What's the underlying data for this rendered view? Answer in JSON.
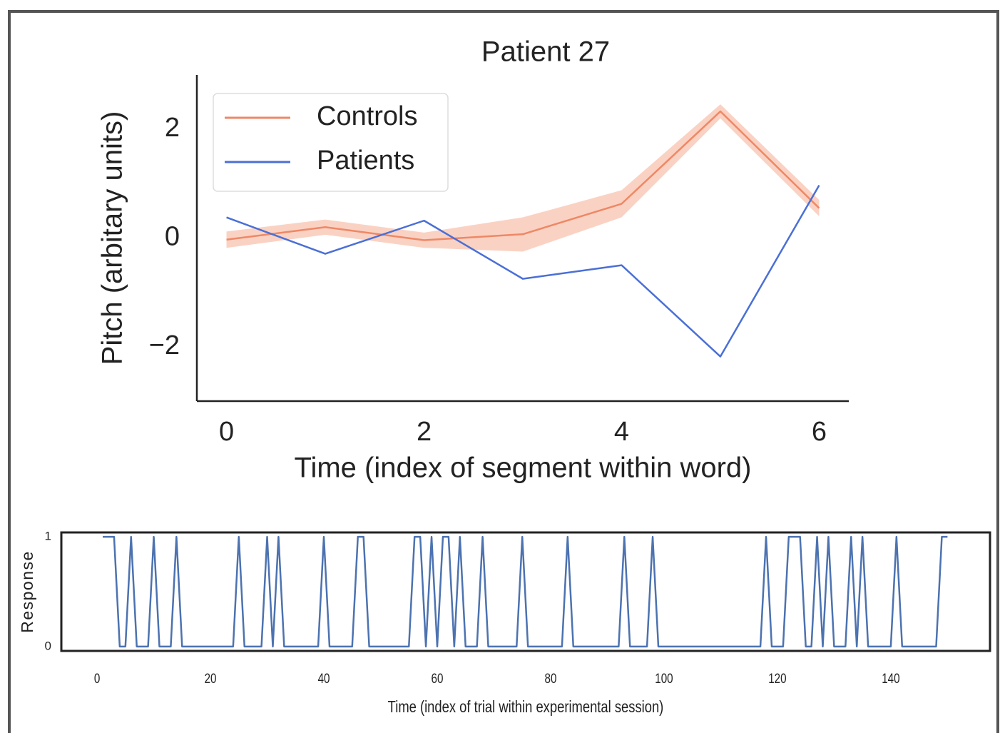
{
  "chart_data": [
    {
      "type": "line",
      "title": "Patient 27",
      "x_label": "Time (index of segment within word)",
      "y_label": "Pitch (arbitary units)",
      "x": [
        0,
        1,
        2,
        3,
        4,
        5,
        6
      ],
      "series": [
        {
          "name": "Controls",
          "color": "#ee8866",
          "values": [
            -0.03,
            0.2,
            -0.04,
            0.07,
            0.63,
            2.33,
            0.55
          ],
          "ci_lower": [
            -0.18,
            0.06,
            -0.18,
            -0.25,
            0.38,
            2.2,
            0.4
          ],
          "ci_upper": [
            0.12,
            0.34,
            0.1,
            0.38,
            0.88,
            2.46,
            0.7
          ],
          "ci_color": "#f9c7b4"
        },
        {
          "name": "Patients",
          "color": "#4a6fd6",
          "values": [
            0.38,
            -0.29,
            0.32,
            -0.75,
            -0.5,
            -2.18,
            0.97
          ]
        }
      ],
      "xlim": [
        -0.3,
        6.3
      ],
      "xticks": [
        0,
        2,
        4,
        6
      ],
      "ylim": [
        -3.0,
        3.0
      ],
      "yticks": [
        {
          "value": -2,
          "label": "−2"
        },
        0,
        2
      ],
      "legend": "upper left",
      "frame": "left-bottom"
    },
    {
      "type": "line",
      "x_label": "Time (index of trial within experimental session)",
      "y_label": "Response",
      "x": [
        1,
        2,
        3,
        4,
        5,
        6,
        7,
        8,
        9,
        10,
        11,
        12,
        13,
        14,
        15,
        16,
        17,
        18,
        19,
        20,
        21,
        22,
        23,
        24,
        25,
        26,
        27,
        28,
        29,
        30,
        31,
        32,
        33,
        34,
        35,
        36,
        37,
        38,
        39,
        40,
        41,
        42,
        43,
        44,
        45,
        46,
        47,
        48,
        49,
        50,
        51,
        52,
        53,
        54,
        55,
        56,
        57,
        58,
        59,
        60,
        61,
        62,
        63,
        64,
        65,
        66,
        67,
        68,
        69,
        70,
        71,
        72,
        73,
        74,
        75,
        76,
        77,
        78,
        79,
        80,
        81,
        82,
        83,
        84,
        85,
        86,
        87,
        88,
        89,
        90,
        91,
        92,
        93,
        94,
        95,
        96,
        97,
        98,
        99,
        100,
        101,
        102,
        103,
        104,
        105,
        106,
        107,
        108,
        109,
        110,
        111,
        112,
        113,
        114,
        115,
        116,
        117,
        118,
        119,
        120,
        121,
        122,
        123,
        124,
        125,
        126,
        127,
        128,
        129,
        130,
        131,
        132,
        133,
        134,
        135,
        136,
        137,
        138,
        139,
        140,
        141,
        142,
        143,
        144,
        145,
        146,
        147,
        148,
        149,
        150
      ],
      "series": [
        {
          "color": "#4c72b0",
          "values": [
            1,
            1,
            1,
            0,
            0,
            1,
            0,
            0,
            0,
            1,
            0,
            0,
            0,
            1,
            0,
            0,
            0,
            0,
            0,
            0,
            0,
            0,
            0,
            0,
            1,
            0,
            0,
            0,
            0,
            1,
            0,
            1,
            0,
            0,
            0,
            0,
            0,
            0,
            0,
            1,
            0,
            0,
            0,
            0,
            0,
            1,
            1,
            0,
            0,
            0,
            0,
            0,
            0,
            0,
            0,
            1,
            1,
            0,
            1,
            0,
            1,
            1,
            0,
            1,
            0,
            0,
            0,
            1,
            0,
            0,
            0,
            0,
            0,
            0,
            1,
            0,
            0,
            0,
            0,
            0,
            0,
            0,
            1,
            0,
            0,
            0,
            0,
            0,
            0,
            0,
            0,
            0,
            1,
            0,
            0,
            0,
            0,
            1,
            0,
            0,
            0,
            0,
            0,
            0,
            0,
            0,
            0,
            0,
            0,
            0,
            0,
            0,
            0,
            0,
            0,
            0,
            0,
            1,
            0,
            0,
            0,
            1,
            1,
            1,
            0,
            0,
            1,
            0,
            1,
            0,
            0,
            0,
            1,
            0,
            1,
            0,
            0,
            0,
            0,
            0,
            1,
            0,
            0,
            0,
            0,
            0,
            0,
            0,
            1,
            1
          ]
        }
      ],
      "xlim": [
        -6.3,
        157.5
      ],
      "xticks": [
        0,
        20,
        40,
        60,
        80,
        100,
        120,
        140
      ],
      "ylim": [
        -0.04,
        1.04
      ],
      "yticks": [
        0,
        1
      ],
      "frame": "box"
    }
  ]
}
